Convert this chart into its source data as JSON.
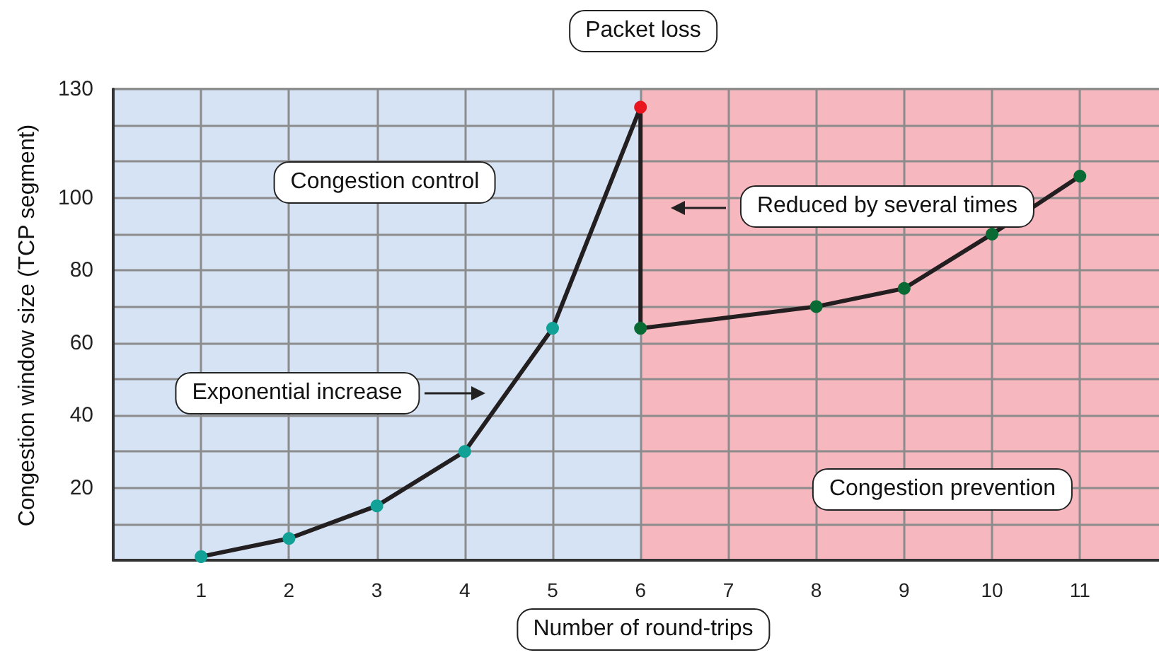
{
  "chart_data": {
    "type": "line",
    "title": "Packet loss",
    "xlabel": "Number of round-trips",
    "ylabel": "Congestion window size (TCP segment)",
    "series": [
      {
        "color": "#231f20",
        "x": [
          1,
          2,
          3,
          4,
          5,
          6,
          6,
          8,
          9,
          10,
          11
        ],
        "values": [
          1,
          6,
          15,
          30,
          64,
          125,
          64,
          70,
          75,
          90,
          106
        ],
        "colors": [
          "#12a197",
          "#12a197",
          "#12a197",
          "#12a197",
          "#12a197",
          "#e8141e",
          "#0a6a34",
          "#0a6a34",
          "#0a6a34",
          "#0a6a34",
          "#0a6a34"
        ]
      }
    ],
    "xlim": [
      0,
      11.9
    ],
    "xticks": [
      1,
      2,
      3,
      4,
      5,
      6,
      7,
      8,
      9,
      10,
      11
    ],
    "ylim": [
      0,
      130
    ],
    "yticks": [
      {
        "value": 10,
        "label": null
      },
      20,
      {
        "value": 30,
        "label": null
      },
      40,
      {
        "value": 50,
        "label": null
      },
      60,
      {
        "value": 70,
        "label": null
      },
      80,
      {
        "value": 90,
        "label": null
      },
      100,
      {
        "value": 110,
        "label": null
      },
      {
        "value": 120,
        "label": null
      },
      130
    ],
    "bands": [
      {
        "axis": "x",
        "from": 0,
        "to": 6,
        "color": "#d5e3f5"
      },
      {
        "axis": "x",
        "from": 6,
        "to": 11.9,
        "color": "#f6b7bf"
      }
    ],
    "annotations": [
      "Congestion control",
      "Exponential increase",
      "Reduced by several times",
      "Congestion prevention"
    ],
    "grid": true,
    "marker": "circle",
    "line_style": "solid"
  }
}
